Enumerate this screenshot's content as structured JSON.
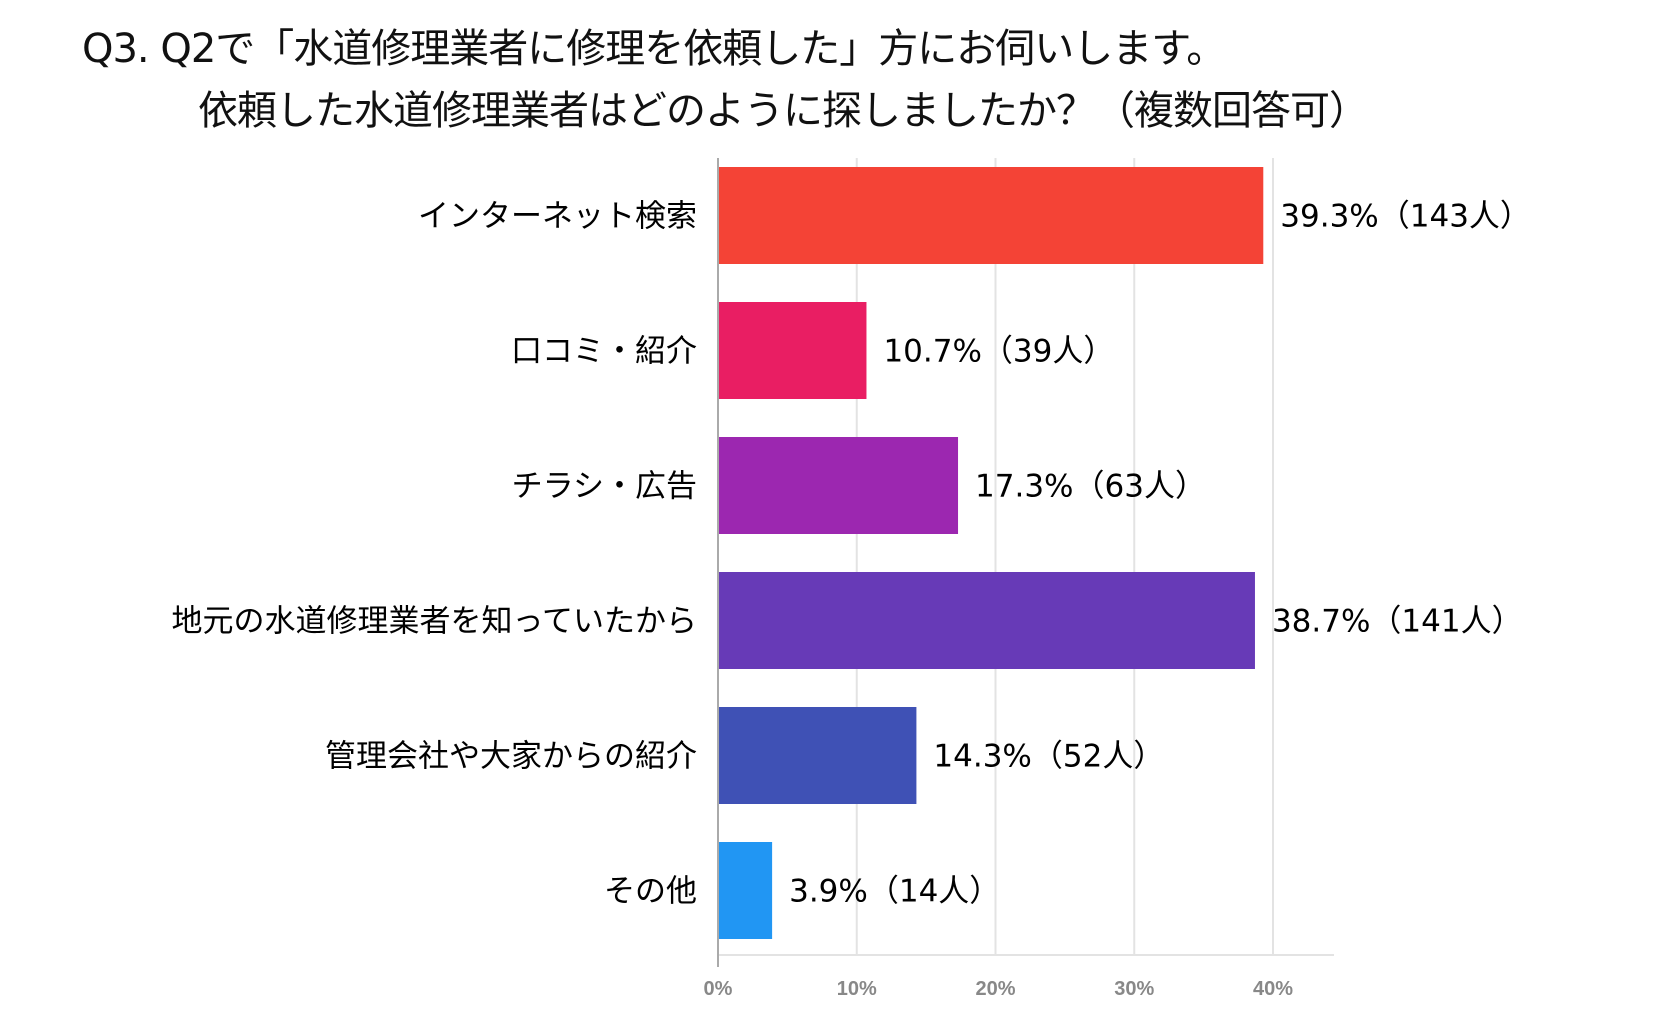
{
  "chart_data": {
    "type": "bar",
    "orientation": "horizontal",
    "title": [
      "Q3. Q2で「水道修理業者に修理を依頼した」方にお伺いします。",
      "依頼した水道修理業者はどのように探しましたか？（複数回答可）"
    ],
    "categories": [
      "インターネット検索",
      "口コミ・紹介",
      "チラシ・広告",
      "地元の水道修理業者を知っていたから",
      "管理会社や大家からの紹介",
      "その他"
    ],
    "values": [
      39.3,
      10.7,
      17.3,
      38.7,
      14.3,
      3.9
    ],
    "data_labels": [
      "39.3%（143人）",
      "10.7%（39人）",
      "17.3%（63人）",
      "38.7%（141人）",
      "14.3%（52人）",
      "3.9%（14人）"
    ],
    "colors": [
      "#F44336",
      "#E91E63",
      "#9C27B0",
      "#673AB7",
      "#3F51B5",
      "#2196F3"
    ],
    "xlim": [
      0,
      44
    ],
    "xticks": [
      0,
      10,
      20,
      30,
      40
    ],
    "xtick_labels": [
      "0%",
      "10%",
      "20%",
      "30%",
      "40%"
    ],
    "grid": true,
    "legend": "none"
  }
}
